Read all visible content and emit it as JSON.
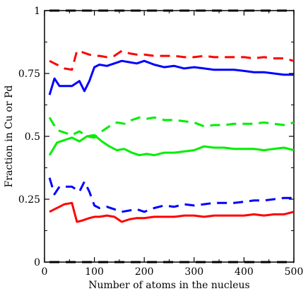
{
  "chart_data": {
    "type": "line",
    "title": "",
    "xlabel": "Number of atoms in the nucleus",
    "ylabel": "Fraction in Cu or Pd",
    "xlim": [
      0,
      500
    ],
    "ylim": [
      0,
      1
    ],
    "xticks": [
      "0",
      "100",
      "200",
      "300",
      "400",
      "500"
    ],
    "yticks": [
      "0",
      "0.25",
      "0.5",
      "0.75",
      "1"
    ],
    "grid": false,
    "legend": "none",
    "series": [
      {
        "color": "#000000",
        "style": "dashed",
        "x": [
          10,
          500
        ],
        "y": [
          1.0,
          1.0
        ]
      },
      {
        "color": "#000000",
        "style": "dashed",
        "x": [
          10,
          500
        ],
        "y": [
          0.0,
          0.0
        ]
      },
      {
        "color": "#ff0000",
        "style": "dashed",
        "x": [
          10,
          20,
          30,
          40,
          55,
          65,
          75,
          90,
          100,
          110,
          125,
          140,
          155,
          170,
          185,
          200,
          220,
          240,
          260,
          280,
          300,
          320,
          340,
          360,
          380,
          400,
          420,
          440,
          460,
          480,
          500
        ],
        "y": [
          0.8,
          0.79,
          0.78,
          0.77,
          0.765,
          0.84,
          0.835,
          0.825,
          0.82,
          0.82,
          0.815,
          0.82,
          0.84,
          0.83,
          0.825,
          0.825,
          0.82,
          0.82,
          0.82,
          0.815,
          0.815,
          0.82,
          0.815,
          0.815,
          0.815,
          0.815,
          0.81,
          0.815,
          0.81,
          0.81,
          0.8
        ]
      },
      {
        "color": "#0000ff",
        "style": "solid",
        "x": [
          10,
          20,
          30,
          45,
          55,
          70,
          80,
          90,
          100,
          110,
          125,
          140,
          155,
          170,
          185,
          200,
          220,
          240,
          260,
          280,
          300,
          320,
          340,
          360,
          380,
          400,
          420,
          440,
          460,
          480,
          500
        ],
        "y": [
          0.665,
          0.73,
          0.7,
          0.7,
          0.7,
          0.72,
          0.68,
          0.72,
          0.775,
          0.785,
          0.78,
          0.79,
          0.8,
          0.795,
          0.79,
          0.8,
          0.785,
          0.775,
          0.78,
          0.77,
          0.775,
          0.77,
          0.765,
          0.765,
          0.765,
          0.76,
          0.755,
          0.755,
          0.75,
          0.745,
          0.745
        ]
      },
      {
        "color": "#00ee00",
        "style": "dashed",
        "x": [
          10,
          25,
          40,
          55,
          70,
          85,
          100,
          115,
          130,
          145,
          160,
          175,
          190,
          205,
          220,
          240,
          260,
          280,
          300,
          320,
          340,
          360,
          380,
          400,
          420,
          440,
          460,
          480,
          500
        ],
        "y": [
          0.575,
          0.525,
          0.515,
          0.505,
          0.52,
          0.5,
          0.495,
          0.52,
          0.54,
          0.555,
          0.55,
          0.565,
          0.575,
          0.57,
          0.575,
          0.565,
          0.565,
          0.56,
          0.555,
          0.54,
          0.545,
          0.545,
          0.55,
          0.55,
          0.55,
          0.555,
          0.55,
          0.545,
          0.555
        ]
      },
      {
        "color": "#00ee00",
        "style": "solid",
        "x": [
          10,
          25,
          40,
          55,
          70,
          85,
          100,
          115,
          130,
          145,
          160,
          175,
          190,
          205,
          220,
          240,
          260,
          280,
          300,
          320,
          340,
          360,
          380,
          400,
          420,
          440,
          460,
          480,
          500
        ],
        "y": [
          0.425,
          0.475,
          0.485,
          0.495,
          0.48,
          0.5,
          0.505,
          0.48,
          0.46,
          0.445,
          0.45,
          0.435,
          0.425,
          0.43,
          0.425,
          0.435,
          0.435,
          0.44,
          0.445,
          0.46,
          0.455,
          0.455,
          0.45,
          0.45,
          0.45,
          0.445,
          0.45,
          0.455,
          0.445
        ]
      },
      {
        "color": "#0000ff",
        "style": "dashed",
        "x": [
          10,
          20,
          30,
          45,
          55,
          70,
          80,
          90,
          100,
          110,
          125,
          140,
          155,
          170,
          185,
          200,
          220,
          240,
          260,
          280,
          300,
          320,
          340,
          360,
          380,
          400,
          420,
          440,
          460,
          480,
          500
        ],
        "y": [
          0.335,
          0.27,
          0.3,
          0.3,
          0.3,
          0.28,
          0.32,
          0.28,
          0.225,
          0.215,
          0.22,
          0.21,
          0.2,
          0.205,
          0.21,
          0.2,
          0.215,
          0.225,
          0.22,
          0.23,
          0.225,
          0.23,
          0.235,
          0.235,
          0.235,
          0.24,
          0.245,
          0.245,
          0.25,
          0.255,
          0.255
        ]
      },
      {
        "color": "#ff0000",
        "style": "solid",
        "x": [
          10,
          20,
          30,
          40,
          55,
          65,
          75,
          90,
          100,
          110,
          125,
          140,
          155,
          170,
          185,
          200,
          220,
          240,
          260,
          280,
          300,
          320,
          340,
          360,
          380,
          400,
          420,
          440,
          460,
          480,
          500
        ],
        "y": [
          0.2,
          0.21,
          0.22,
          0.23,
          0.235,
          0.16,
          0.165,
          0.175,
          0.18,
          0.18,
          0.185,
          0.18,
          0.16,
          0.17,
          0.175,
          0.175,
          0.18,
          0.18,
          0.18,
          0.185,
          0.185,
          0.18,
          0.185,
          0.185,
          0.185,
          0.185,
          0.19,
          0.185,
          0.19,
          0.19,
          0.2
        ]
      }
    ]
  }
}
